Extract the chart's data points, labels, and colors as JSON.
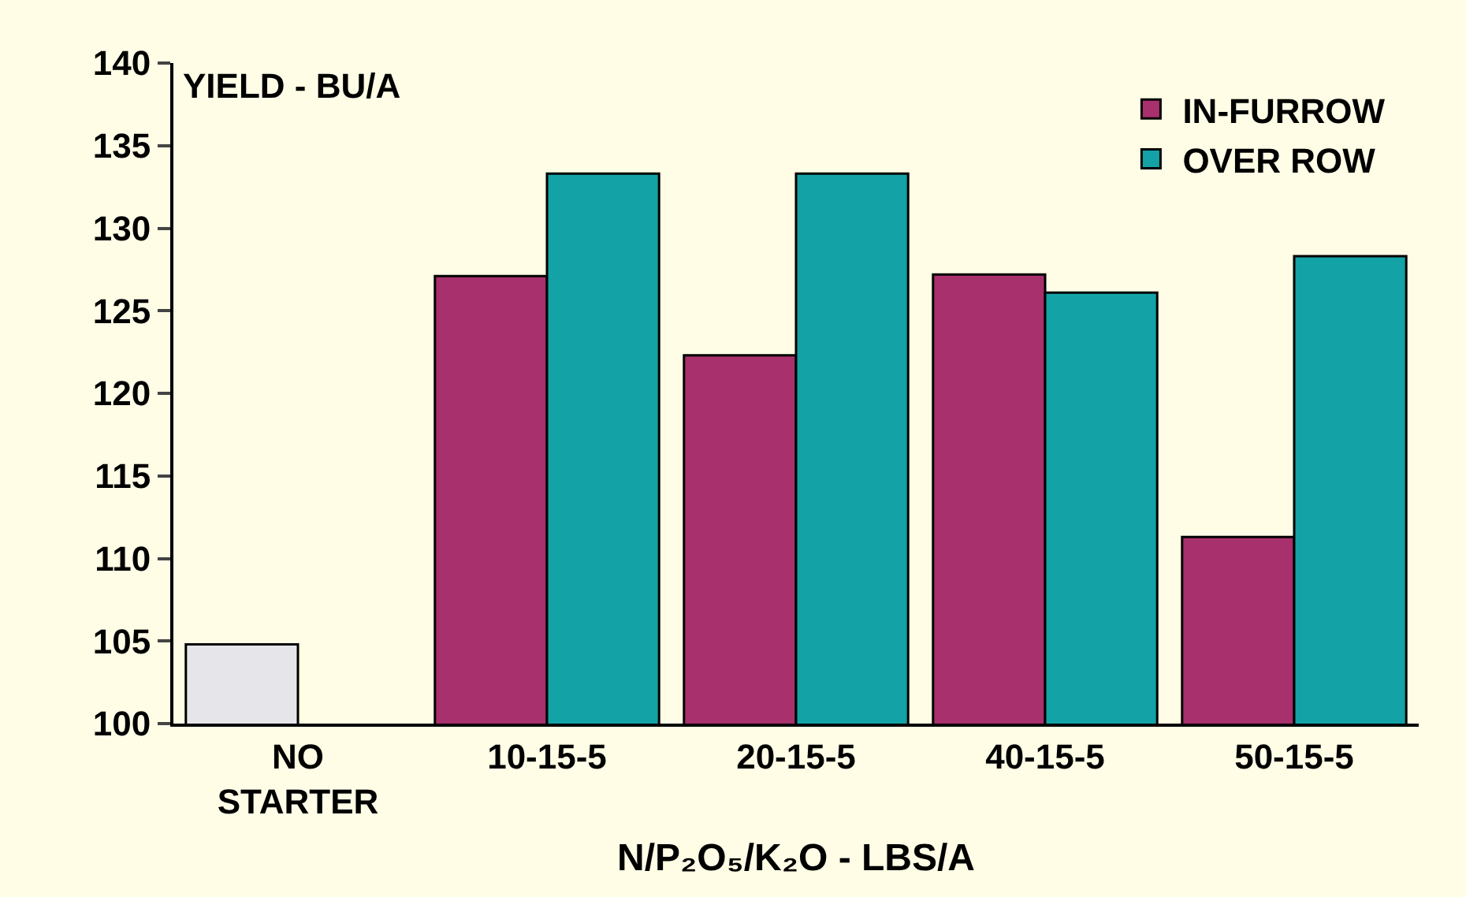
{
  "chart_data": {
    "type": "bar",
    "ylabel": "YIELD - BU/A",
    "xlabel": "N/P₂O₅/K₂O - LBS/A",
    "categories": [
      "NO\nSTARTER",
      "10-15-5",
      "20-15-5",
      "40-15-5",
      "50-15-5"
    ],
    "series": [
      {
        "color": "#e6e6ea",
        "values": [
          104.8,
          null,
          null,
          null,
          null
        ]
      },
      {
        "name": "IN-FURROW",
        "color": "#a8306c",
        "values": [
          null,
          127.1,
          122.3,
          127.2,
          111.3
        ]
      },
      {
        "name": "OVER ROW",
        "color": "#13a3a6",
        "values": [
          null,
          133.3,
          133.3,
          126.1,
          128.3
        ]
      }
    ],
    "ylim": [
      100,
      140
    ],
    "yticks": [
      100,
      105,
      110,
      115,
      120,
      125,
      130,
      135,
      140
    ],
    "legend": "top right",
    "grid": false
  }
}
